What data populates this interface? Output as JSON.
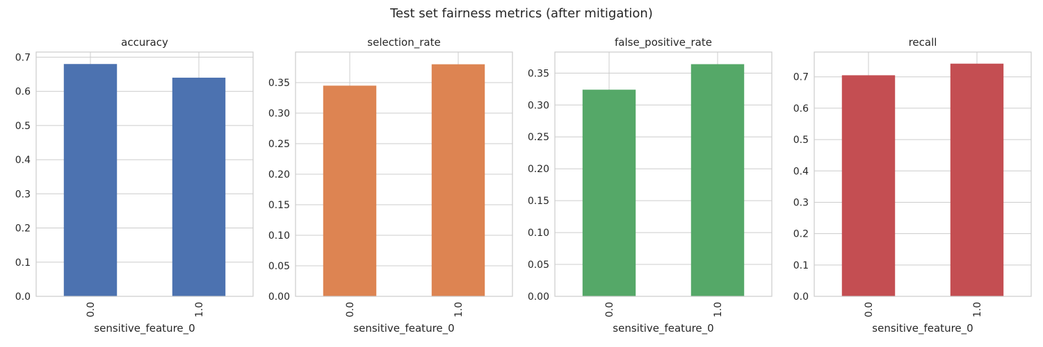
{
  "title": "Test set fairness metrics (after mitigation)",
  "chart_data": [
    {
      "type": "bar",
      "title": "accuracy",
      "xlabel": "sensitive_feature_0",
      "ylabel": "",
      "categories": [
        "0.0",
        "1.0"
      ],
      "values": [
        0.68,
        0.64
      ],
      "ylim": [
        0,
        0.715
      ],
      "yticks": [
        0.0,
        0.1,
        0.2,
        0.3,
        0.4,
        0.5,
        0.6,
        0.7
      ],
      "tick_labels": [
        "0.0",
        "0.1",
        "0.2",
        "0.3",
        "0.4",
        "0.5",
        "0.6",
        "0.7"
      ],
      "color": "#4c72b0",
      "grid": true
    },
    {
      "type": "bar",
      "title": "selection_rate",
      "xlabel": "sensitive_feature_0",
      "ylabel": "",
      "categories": [
        "0.0",
        "1.0"
      ],
      "values": [
        0.345,
        0.38
      ],
      "ylim": [
        0,
        0.4
      ],
      "yticks": [
        0.0,
        0.05,
        0.1,
        0.15,
        0.2,
        0.25,
        0.3,
        0.35
      ],
      "tick_labels": [
        "0.00",
        "0.05",
        "0.10",
        "0.15",
        "0.20",
        "0.25",
        "0.30",
        "0.35"
      ],
      "color": "#dd8452",
      "grid": true
    },
    {
      "type": "bar",
      "title": "false_positive_rate",
      "xlabel": "sensitive_feature_0",
      "ylabel": "",
      "categories": [
        "0.0",
        "1.0"
      ],
      "values": [
        0.324,
        0.364
      ],
      "ylim": [
        0,
        0.383
      ],
      "yticks": [
        0.0,
        0.05,
        0.1,
        0.15,
        0.2,
        0.25,
        0.3,
        0.35
      ],
      "tick_labels": [
        "0.00",
        "0.05",
        "0.10",
        "0.15",
        "0.20",
        "0.25",
        "0.30",
        "0.35"
      ],
      "color": "#55a868",
      "grid": true
    },
    {
      "type": "bar",
      "title": "recall",
      "xlabel": "sensitive_feature_0",
      "ylabel": "",
      "categories": [
        "0.0",
        "1.0"
      ],
      "values": [
        0.705,
        0.742
      ],
      "ylim": [
        0,
        0.779
      ],
      "yticks": [
        0.0,
        0.1,
        0.2,
        0.3,
        0.4,
        0.5,
        0.6,
        0.7
      ],
      "tick_labels": [
        "0.0",
        "0.1",
        "0.2",
        "0.3",
        "0.4",
        "0.5",
        "0.6",
        "0.7"
      ],
      "color": "#c44e52",
      "grid": true
    }
  ]
}
